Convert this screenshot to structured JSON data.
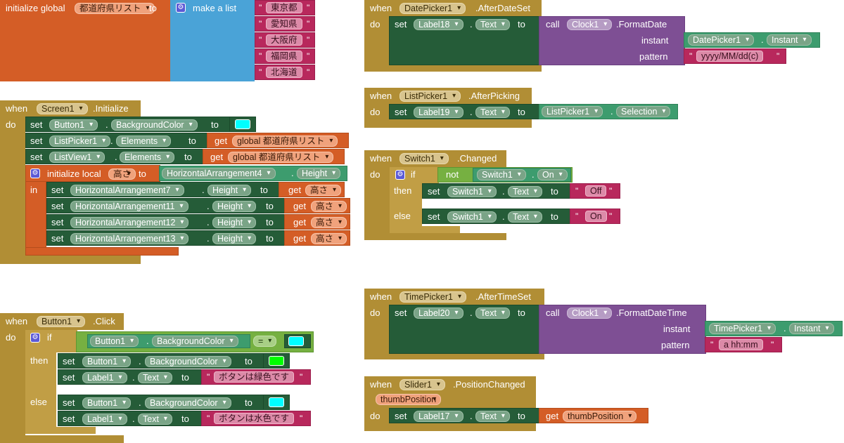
{
  "kw": {
    "when": "when",
    "do": "do",
    "set": "set",
    "to": "to",
    "get": "get",
    "call": "call",
    "if": "if",
    "then": "then",
    "else": "else",
    "in": "in",
    "not": "not",
    "eq": "="
  },
  "global_list": {
    "initialize_global": "initialize global",
    "var_name": "都道府県リスト",
    "to": "to",
    "make_a_list": "make a list",
    "items": [
      "東京都",
      "愛知県",
      "大阪府",
      "福岡県",
      "北海道"
    ]
  },
  "screen_init": {
    "component": "Screen1",
    "event": ".Initialize",
    "row1": {
      "component": "Button1",
      "property": "BackgroundColor",
      "color": "#00ffff"
    },
    "row2": {
      "component": "ListPicker1",
      "property": "Elements",
      "get_var": "global 都道府県リスト"
    },
    "row3": {
      "component": "ListView1",
      "property": "Elements",
      "get_var": "global 都道府県リスト"
    },
    "local": {
      "label": "initialize local",
      "var": "高さ",
      "component": "HorizontalArrangement4",
      "property": "Height"
    },
    "local_rows": [
      {
        "component": "HorizontalArrangement7",
        "property": "Height",
        "get_var": "高さ"
      },
      {
        "component": "HorizontalArrangement11",
        "property": "Height",
        "get_var": "高さ"
      },
      {
        "component": "HorizontalArrangement12",
        "property": "Height",
        "get_var": "高さ"
      },
      {
        "component": "HorizontalArrangement13",
        "property": "Height",
        "get_var": "高さ"
      }
    ]
  },
  "button_click": {
    "component": "Button1",
    "event": ".Click",
    "cond": {
      "component": "Button1",
      "property": "BackgroundColor",
      "op": "=",
      "color": "#00ffff"
    },
    "then_rows": [
      {
        "component": "Button1",
        "property": "BackgroundColor",
        "color": "#00ff00"
      },
      {
        "component": "Label1",
        "property": "Text",
        "text": "ボタンは緑色です"
      }
    ],
    "else_rows": [
      {
        "component": "Button1",
        "property": "BackgroundColor",
        "color": "#00ffff"
      },
      {
        "component": "Label1",
        "property": "Text",
        "text": "ボタンは水色です"
      }
    ]
  },
  "datepicker": {
    "component": "DatePicker1",
    "event": ".AfterDateSet",
    "label": "Label18",
    "property": "Text",
    "clock": "Clock1",
    "method": ".FormatDate",
    "instant_label": "instant",
    "instant_comp": "DatePicker1",
    "instant_prop": "Instant",
    "pattern_label": "pattern",
    "pattern": "yyyy/MM/dd(c)"
  },
  "listpicker": {
    "component": "ListPicker1",
    "event": ".AfterPicking",
    "label": "Label19",
    "property": "Text",
    "src_comp": "ListPicker1",
    "src_prop": "Selection"
  },
  "switch": {
    "component": "Switch1",
    "event": ".Changed",
    "cond_comp": "Switch1",
    "cond_prop": "On",
    "then": {
      "component": "Switch1",
      "property": "Text",
      "text": "Off"
    },
    "else": {
      "component": "Switch1",
      "property": "Text",
      "text": "On"
    }
  },
  "timepicker": {
    "component": "TimePicker1",
    "event": ".AfterTimeSet",
    "label": "Label20",
    "property": "Text",
    "clock": "Clock1",
    "method": ".FormatDateTime",
    "instant_label": "instant",
    "instant_comp": "TimePicker1",
    "instant_prop": "Instant",
    "pattern_label": "pattern",
    "pattern": "a hh:mm"
  },
  "slider": {
    "component": "Slider1",
    "event": ".PositionChanged",
    "param": "thumbPosition",
    "label": "Label17",
    "property": "Text",
    "get_var": "thumbPosition"
  }
}
